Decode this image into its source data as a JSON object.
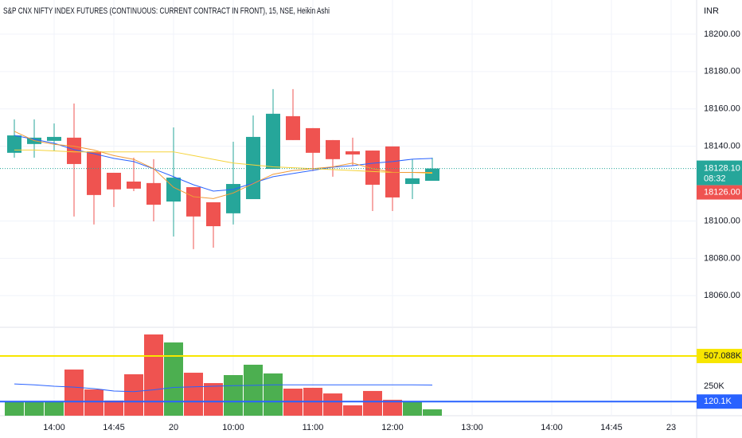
{
  "chart_data": [
    {
      "type": "candlestick",
      "title": "S&P CNX NIFTY INDEX FUTURES (CONTINUOUS: CURRENT CONTRACT IN FRONT), 15, NSE, Heikin Ashi",
      "ylabel": "INR",
      "x": [
        0,
        1,
        2,
        3,
        4,
        5,
        6,
        7,
        8,
        9,
        10,
        11,
        12,
        13,
        14,
        15,
        16,
        17,
        18,
        19,
        20,
        21
      ],
      "open": [
        18136.5,
        18141.2,
        18142.9,
        18144.6,
        18137.3,
        18125.8,
        18121.1,
        18120.3,
        18110.4,
        18118.1,
        18110.0,
        18104.1,
        18111.7,
        18127.9,
        18156.1,
        18149.7,
        18143.3,
        18137.3,
        18137.7,
        18139.9,
        18119.8,
        18121.5
      ],
      "high": [
        18154.4,
        18154.4,
        18152.2,
        18162.9,
        18137.3,
        18125.8,
        18133.9,
        18133.1,
        18150.1,
        18118.1,
        18110.0,
        18142.4,
        18156.5,
        18170.6,
        18170.6,
        18149.7,
        18143.3,
        18144.6,
        18137.7,
        18139.9,
        18133.1,
        18133.9
      ],
      "low": [
        18133.9,
        18133.9,
        18137.3,
        18102.4,
        18098.1,
        18107.5,
        18116.0,
        18099.8,
        18091.7,
        18084.9,
        18085.7,
        18098.1,
        18111.7,
        18127.9,
        18143.3,
        18126.7,
        18123.7,
        18129.6,
        18105.3,
        18105.3,
        18111.7,
        18121.5
      ],
      "close": [
        18145.8,
        18144.6,
        18145.0,
        18130.5,
        18113.9,
        18116.9,
        18117.3,
        18108.7,
        18123.2,
        18102.4,
        18097.2,
        18119.8,
        18145.0,
        18157.4,
        18143.3,
        18136.5,
        18133.1,
        18135.6,
        18119.4,
        18112.6,
        18122.8,
        18128.1
      ],
      "up_color": "#26a69a",
      "down_color": "#ef5350",
      "lines": [
        {
          "color": "#2962ff",
          "values": [
            18145.8,
            18143.7,
            18141.6,
            18138.2,
            18136.0,
            18133.5,
            18131.8,
            18127.9,
            18123.7,
            18119.4,
            18116.0,
            18116.9,
            18120.3,
            18123.7,
            18125.4,
            18127.1,
            18128.8,
            18129.6,
            18130.9,
            18131.8,
            18133.1,
            18133.5
          ]
        },
        {
          "color": "#f5d33a",
          "values": [
            18138,
            18138,
            18137.5,
            18137,
            18137,
            18137,
            18137,
            18137,
            18137,
            18135,
            18133,
            18131,
            18130,
            18129,
            18128.5,
            18128,
            18127.5,
            18127,
            18126.5,
            18126,
            18126,
            18125.5
          ]
        },
        {
          "color": "#f09a37",
          "values": [
            18148,
            18143,
            18141,
            18140,
            18138,
            18135,
            18133,
            18128,
            18118,
            18113,
            18112,
            18115,
            18120,
            18125,
            18127,
            18128,
            18129,
            18131,
            18128,
            18126,
            18126,
            18126
          ]
        }
      ],
      "xlim": [
        -0.72,
        34.28
      ],
      "xticks": [
        {
          "value": 2,
          "label": "14:00"
        },
        {
          "value": 5,
          "label": "14:45"
        },
        {
          "value": 8,
          "label": "20"
        },
        {
          "value": 11,
          "label": "10:00"
        },
        {
          "value": 15,
          "label": "11:00"
        },
        {
          "value": 19,
          "label": "12:00"
        },
        {
          "value": 23,
          "label": "13:00"
        },
        {
          "value": 27,
          "label": "14:00"
        },
        {
          "value": 30,
          "label": "14:45"
        },
        {
          "value": 33,
          "label": "23"
        }
      ],
      "ylim": [
        18043.5,
        18218.3
      ],
      "yticks": [
        {
          "value": 18060,
          "label": "18060.00"
        },
        {
          "value": 18080,
          "label": "18080.00"
        },
        {
          "value": 18100,
          "label": "18100.00"
        },
        {
          "value": 18140,
          "label": "18140.00"
        },
        {
          "value": 18160,
          "label": "18160.00"
        },
        {
          "value": 18180,
          "label": "18180.00"
        },
        {
          "value": 18200,
          "label": "18200.00"
        }
      ],
      "grid": true,
      "last_price": {
        "value": 18128.1,
        "label": "18128.10",
        "countdown": "08:32",
        "color": "#26a69a"
      },
      "price_tag": {
        "value": 18126,
        "label": "18126.00",
        "color": "#ef5350"
      }
    },
    {
      "type": "bar",
      "x": [
        0,
        1,
        2,
        3,
        4,
        5,
        6,
        7,
        8,
        9,
        10,
        11,
        12,
        13,
        14,
        15,
        16,
        17,
        18,
        19,
        20,
        21
      ],
      "values": [
        115000,
        115000,
        115000,
        392000,
        223000,
        129000,
        352000,
        690000,
        622000,
        365000,
        277000,
        345000,
        433000,
        359000,
        230000,
        237000,
        189000,
        88000,
        210000,
        135000,
        115000,
        54000
      ],
      "colors": [
        "#4caf50",
        "#4caf50",
        "#4caf50",
        "#ef5350",
        "#ef5350",
        "#ef5350",
        "#ef5350",
        "#ef5350",
        "#4caf50",
        "#ef5350",
        "#ef5350",
        "#4caf50",
        "#4caf50",
        "#4caf50",
        "#ef5350",
        "#ef5350",
        "#ef5350",
        "#ef5350",
        "#ef5350",
        "#ef5350",
        "#4caf50",
        "#4caf50"
      ],
      "line": {
        "color": "#2962ff",
        "values": [
          270000,
          262000,
          250000,
          243000,
          230000,
          210000,
          205000,
          220000,
          240000,
          245000,
          250000,
          255000,
          258000,
          262000,
          262000,
          262000,
          262000,
          262000,
          262000,
          262000,
          262000,
          260000
        ]
      },
      "ylim": [
        0,
        744000
      ],
      "yticks": [
        {
          "value": 250000,
          "label": "250K"
        }
      ],
      "hlines": [
        {
          "value": 507088,
          "label": "507.088K",
          "color": "#f7e600",
          "text_color": "#131722"
        },
        {
          "value": 120100,
          "label": "120.1K",
          "color": "#2962ff",
          "text_color": "#ffffff"
        }
      ]
    }
  ]
}
